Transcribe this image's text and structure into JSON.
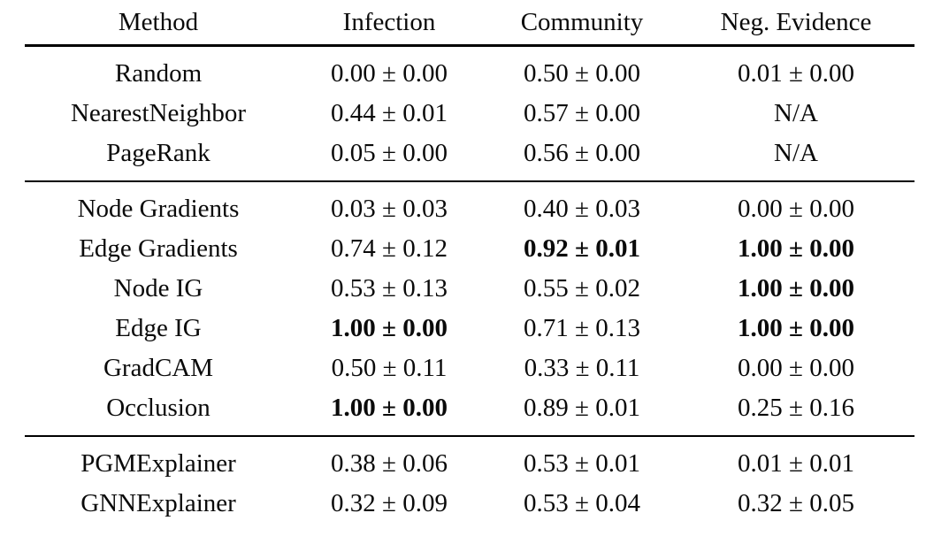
{
  "table": {
    "headers": [
      "Method",
      "Infection",
      "Community",
      "Neg. Evidence"
    ],
    "groups": [
      {
        "rows": [
          {
            "cells": [
              {
                "text": "Random",
                "bold": false
              },
              {
                "text": "0.00 ± 0.00",
                "bold": false
              },
              {
                "text": "0.50 ± 0.00",
                "bold": false
              },
              {
                "text": "0.01 ± 0.00",
                "bold": false
              }
            ]
          },
          {
            "cells": [
              {
                "text": "NearestNeighbor",
                "bold": false
              },
              {
                "text": "0.44 ± 0.01",
                "bold": false
              },
              {
                "text": "0.57 ± 0.00",
                "bold": false
              },
              {
                "text": "N/A",
                "bold": false
              }
            ]
          },
          {
            "cells": [
              {
                "text": "PageRank",
                "bold": false
              },
              {
                "text": "0.05 ± 0.00",
                "bold": false
              },
              {
                "text": "0.56 ± 0.00",
                "bold": false
              },
              {
                "text": "N/A",
                "bold": false
              }
            ]
          }
        ]
      },
      {
        "rows": [
          {
            "cells": [
              {
                "text": "Node Gradients",
                "bold": false
              },
              {
                "text": "0.03 ± 0.03",
                "bold": false
              },
              {
                "text": "0.40 ± 0.03",
                "bold": false
              },
              {
                "text": "0.00 ± 0.00",
                "bold": false
              }
            ]
          },
          {
            "cells": [
              {
                "text": "Edge Gradients",
                "bold": false
              },
              {
                "text": "0.74 ± 0.12",
                "bold": false
              },
              {
                "text": "0.92 ± 0.01",
                "bold": true
              },
              {
                "text": "1.00 ± 0.00",
                "bold": true
              }
            ]
          },
          {
            "cells": [
              {
                "text": "Node IG",
                "bold": false
              },
              {
                "text": "0.53 ± 0.13",
                "bold": false
              },
              {
                "text": "0.55 ± 0.02",
                "bold": false
              },
              {
                "text": "1.00 ± 0.00",
                "bold": true
              }
            ]
          },
          {
            "cells": [
              {
                "text": "Edge IG",
                "bold": false
              },
              {
                "text": "1.00 ± 0.00",
                "bold": true
              },
              {
                "text": "0.71 ± 0.13",
                "bold": false
              },
              {
                "text": "1.00 ± 0.00",
                "bold": true
              }
            ]
          },
          {
            "cells": [
              {
                "text": "GradCAM",
                "bold": false
              },
              {
                "text": "0.50 ± 0.11",
                "bold": false
              },
              {
                "text": "0.33 ± 0.11",
                "bold": false
              },
              {
                "text": "0.00 ± 0.00",
                "bold": false
              }
            ]
          },
          {
            "cells": [
              {
                "text": "Occlusion",
                "bold": false
              },
              {
                "text": "1.00 ± 0.00",
                "bold": true
              },
              {
                "text": "0.89 ± 0.01",
                "bold": false
              },
              {
                "text": "0.25 ± 0.16",
                "bold": false
              }
            ]
          }
        ]
      },
      {
        "rows": [
          {
            "cells": [
              {
                "text": "PGMExplainer",
                "bold": false
              },
              {
                "text": "0.38 ± 0.06",
                "bold": false
              },
              {
                "text": "0.53 ± 0.01",
                "bold": false
              },
              {
                "text": "0.01 ± 0.01",
                "bold": false
              }
            ]
          },
          {
            "cells": [
              {
                "text": "GNNExplainer",
                "bold": false
              },
              {
                "text": "0.32 ± 0.09",
                "bold": false
              },
              {
                "text": "0.53 ± 0.04",
                "bold": false
              },
              {
                "text": "0.32 ± 0.05",
                "bold": false
              }
            ]
          }
        ]
      }
    ]
  }
}
